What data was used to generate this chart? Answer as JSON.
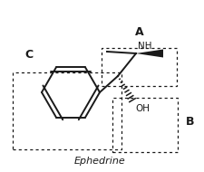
{
  "label_A": "A",
  "label_B": "B",
  "label_C": "C",
  "label_NH": "NH",
  "label_OH": "OH",
  "label_ephedrine": "Ephedrine",
  "bg_color": "#ffffff",
  "line_color": "#1a1a1a",
  "text_color": "#1a1a1a"
}
